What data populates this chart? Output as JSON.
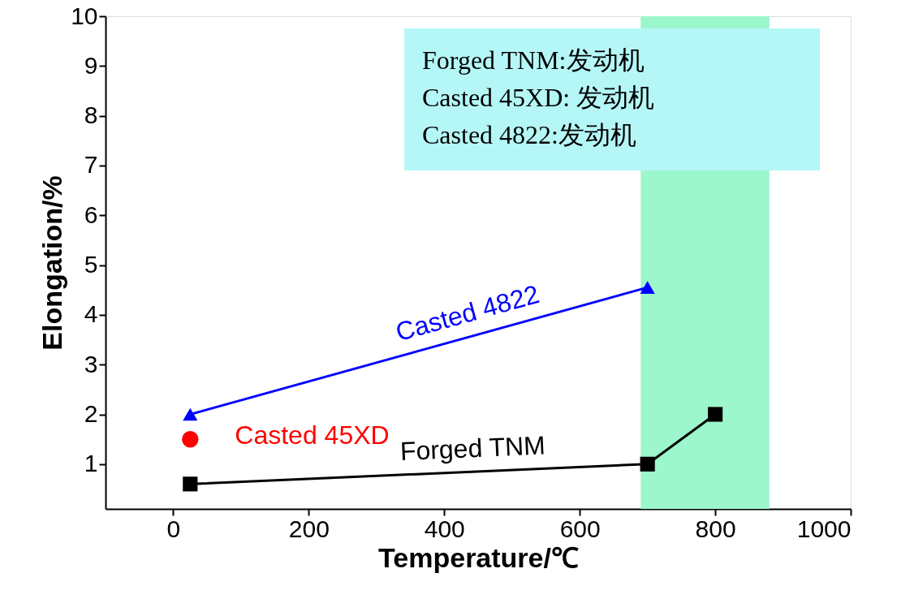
{
  "chart_data": {
    "type": "line",
    "xlabel": "Temperature/℃",
    "ylabel": "Elongation/%",
    "xlim": [
      -100,
      1000
    ],
    "xticks": [
      0,
      200,
      400,
      600,
      800,
      1000
    ],
    "ylim": [
      0.1,
      10
    ],
    "yticks": [
      1,
      2,
      3,
      4,
      5,
      6,
      7,
      8,
      9,
      10
    ],
    "grid": false,
    "series": [
      {
        "name": "Forged TNM",
        "color": "#000000",
        "marker": "square",
        "x": [
          25,
          700,
          800
        ],
        "values": [
          0.6,
          1,
          2
        ]
      },
      {
        "name": "Casted 45XD",
        "type": "scatter",
        "color": "#ff0000",
        "marker": "circle",
        "x": [
          25
        ],
        "values": [
          1.5
        ]
      },
      {
        "name": "Casted 4822",
        "color": "#0000ff",
        "marker": "triangle",
        "x": [
          25,
          700
        ],
        "values": [
          2,
          4.55
        ]
      }
    ],
    "bands": [
      {
        "axis": "x",
        "from": 690,
        "to": 880,
        "color": "#9cf7cc"
      }
    ],
    "annotations": [
      "Forged TNM:发动机",
      "Casted 45XD: 发动机",
      "Casted 4822:发动机"
    ]
  }
}
